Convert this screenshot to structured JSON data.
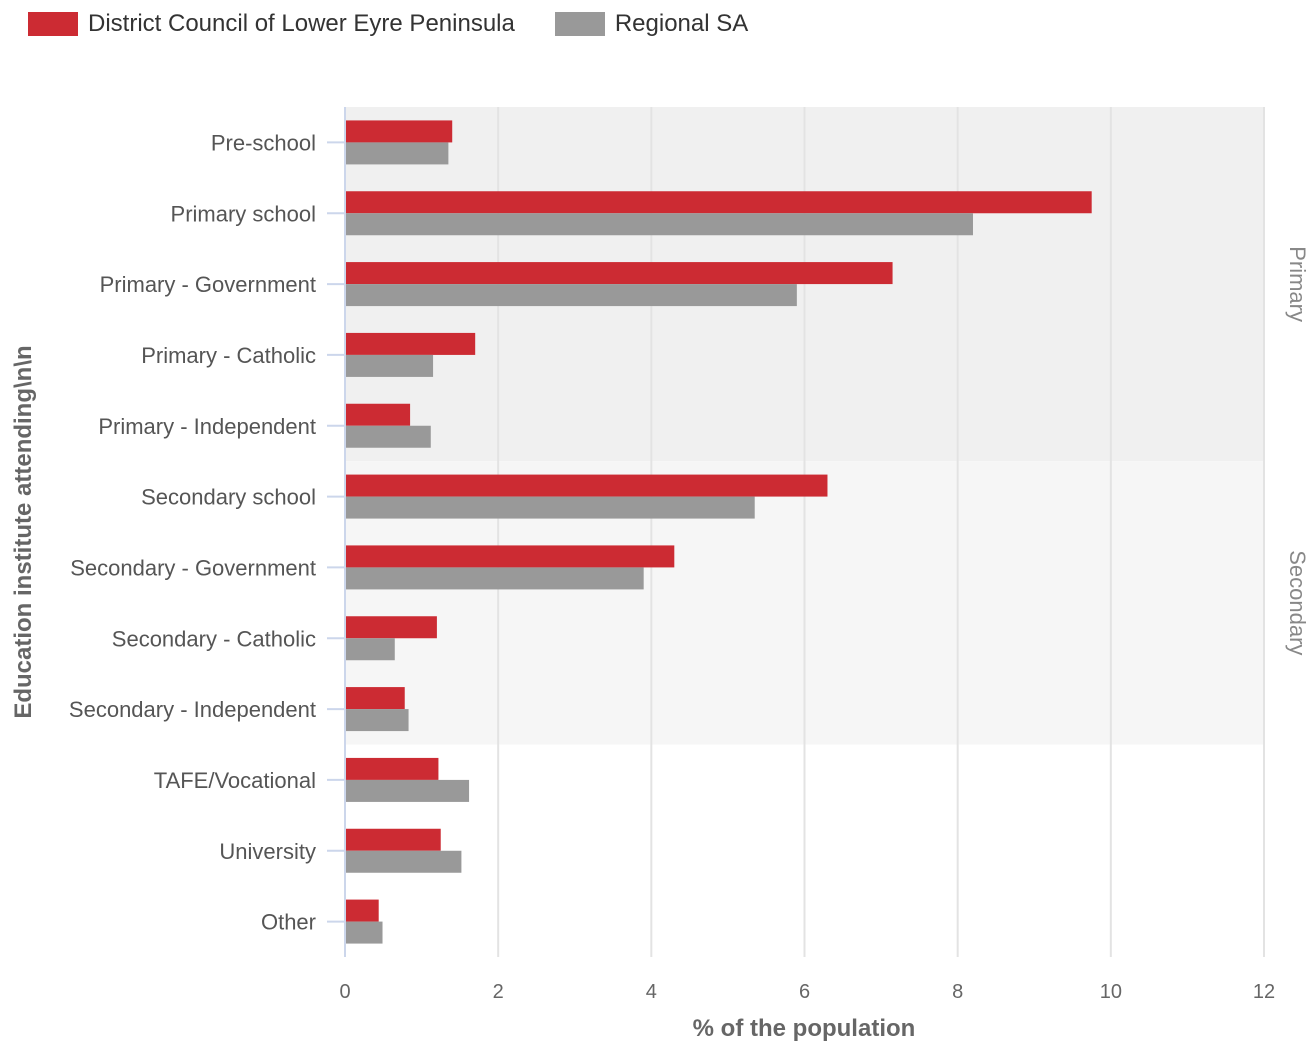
{
  "chart_data": {
    "type": "bar",
    "orientation": "horizontal",
    "ylabel": "Education institute attending\\n\\n",
    "xlabel": "% of the population",
    "xlim": [
      0,
      12
    ],
    "xticks": [
      0,
      2,
      4,
      6,
      8,
      10,
      12
    ],
    "grid": true,
    "legend_position": "top-left",
    "categories": [
      "Pre-school",
      "Primary school",
      "Primary - Government",
      "Primary - Catholic",
      "Primary - Independent",
      "Secondary school",
      "Secondary - Government",
      "Secondary - Catholic",
      "Secondary - Independent",
      "TAFE/Vocational",
      "University",
      "Other"
    ],
    "series": [
      {
        "name": "District Council of Lower Eyre Peninsula",
        "color": "#cc2b33",
        "values": [
          1.4,
          9.75,
          7.15,
          1.7,
          0.85,
          6.3,
          4.3,
          1.2,
          0.78,
          1.22,
          1.25,
          0.44
        ]
      },
      {
        "name": "Regional SA",
        "color": "#999999",
        "values": [
          1.35,
          8.2,
          5.9,
          1.15,
          1.12,
          5.35,
          3.9,
          0.65,
          0.83,
          1.62,
          1.52,
          0.49
        ]
      }
    ],
    "bands": [
      {
        "label": "Primary",
        "from": 0,
        "to": 4,
        "color": "#f0f0f0"
      },
      {
        "label": "Secondary",
        "from": 5,
        "to": 8,
        "color": "#f6f6f6"
      }
    ]
  }
}
